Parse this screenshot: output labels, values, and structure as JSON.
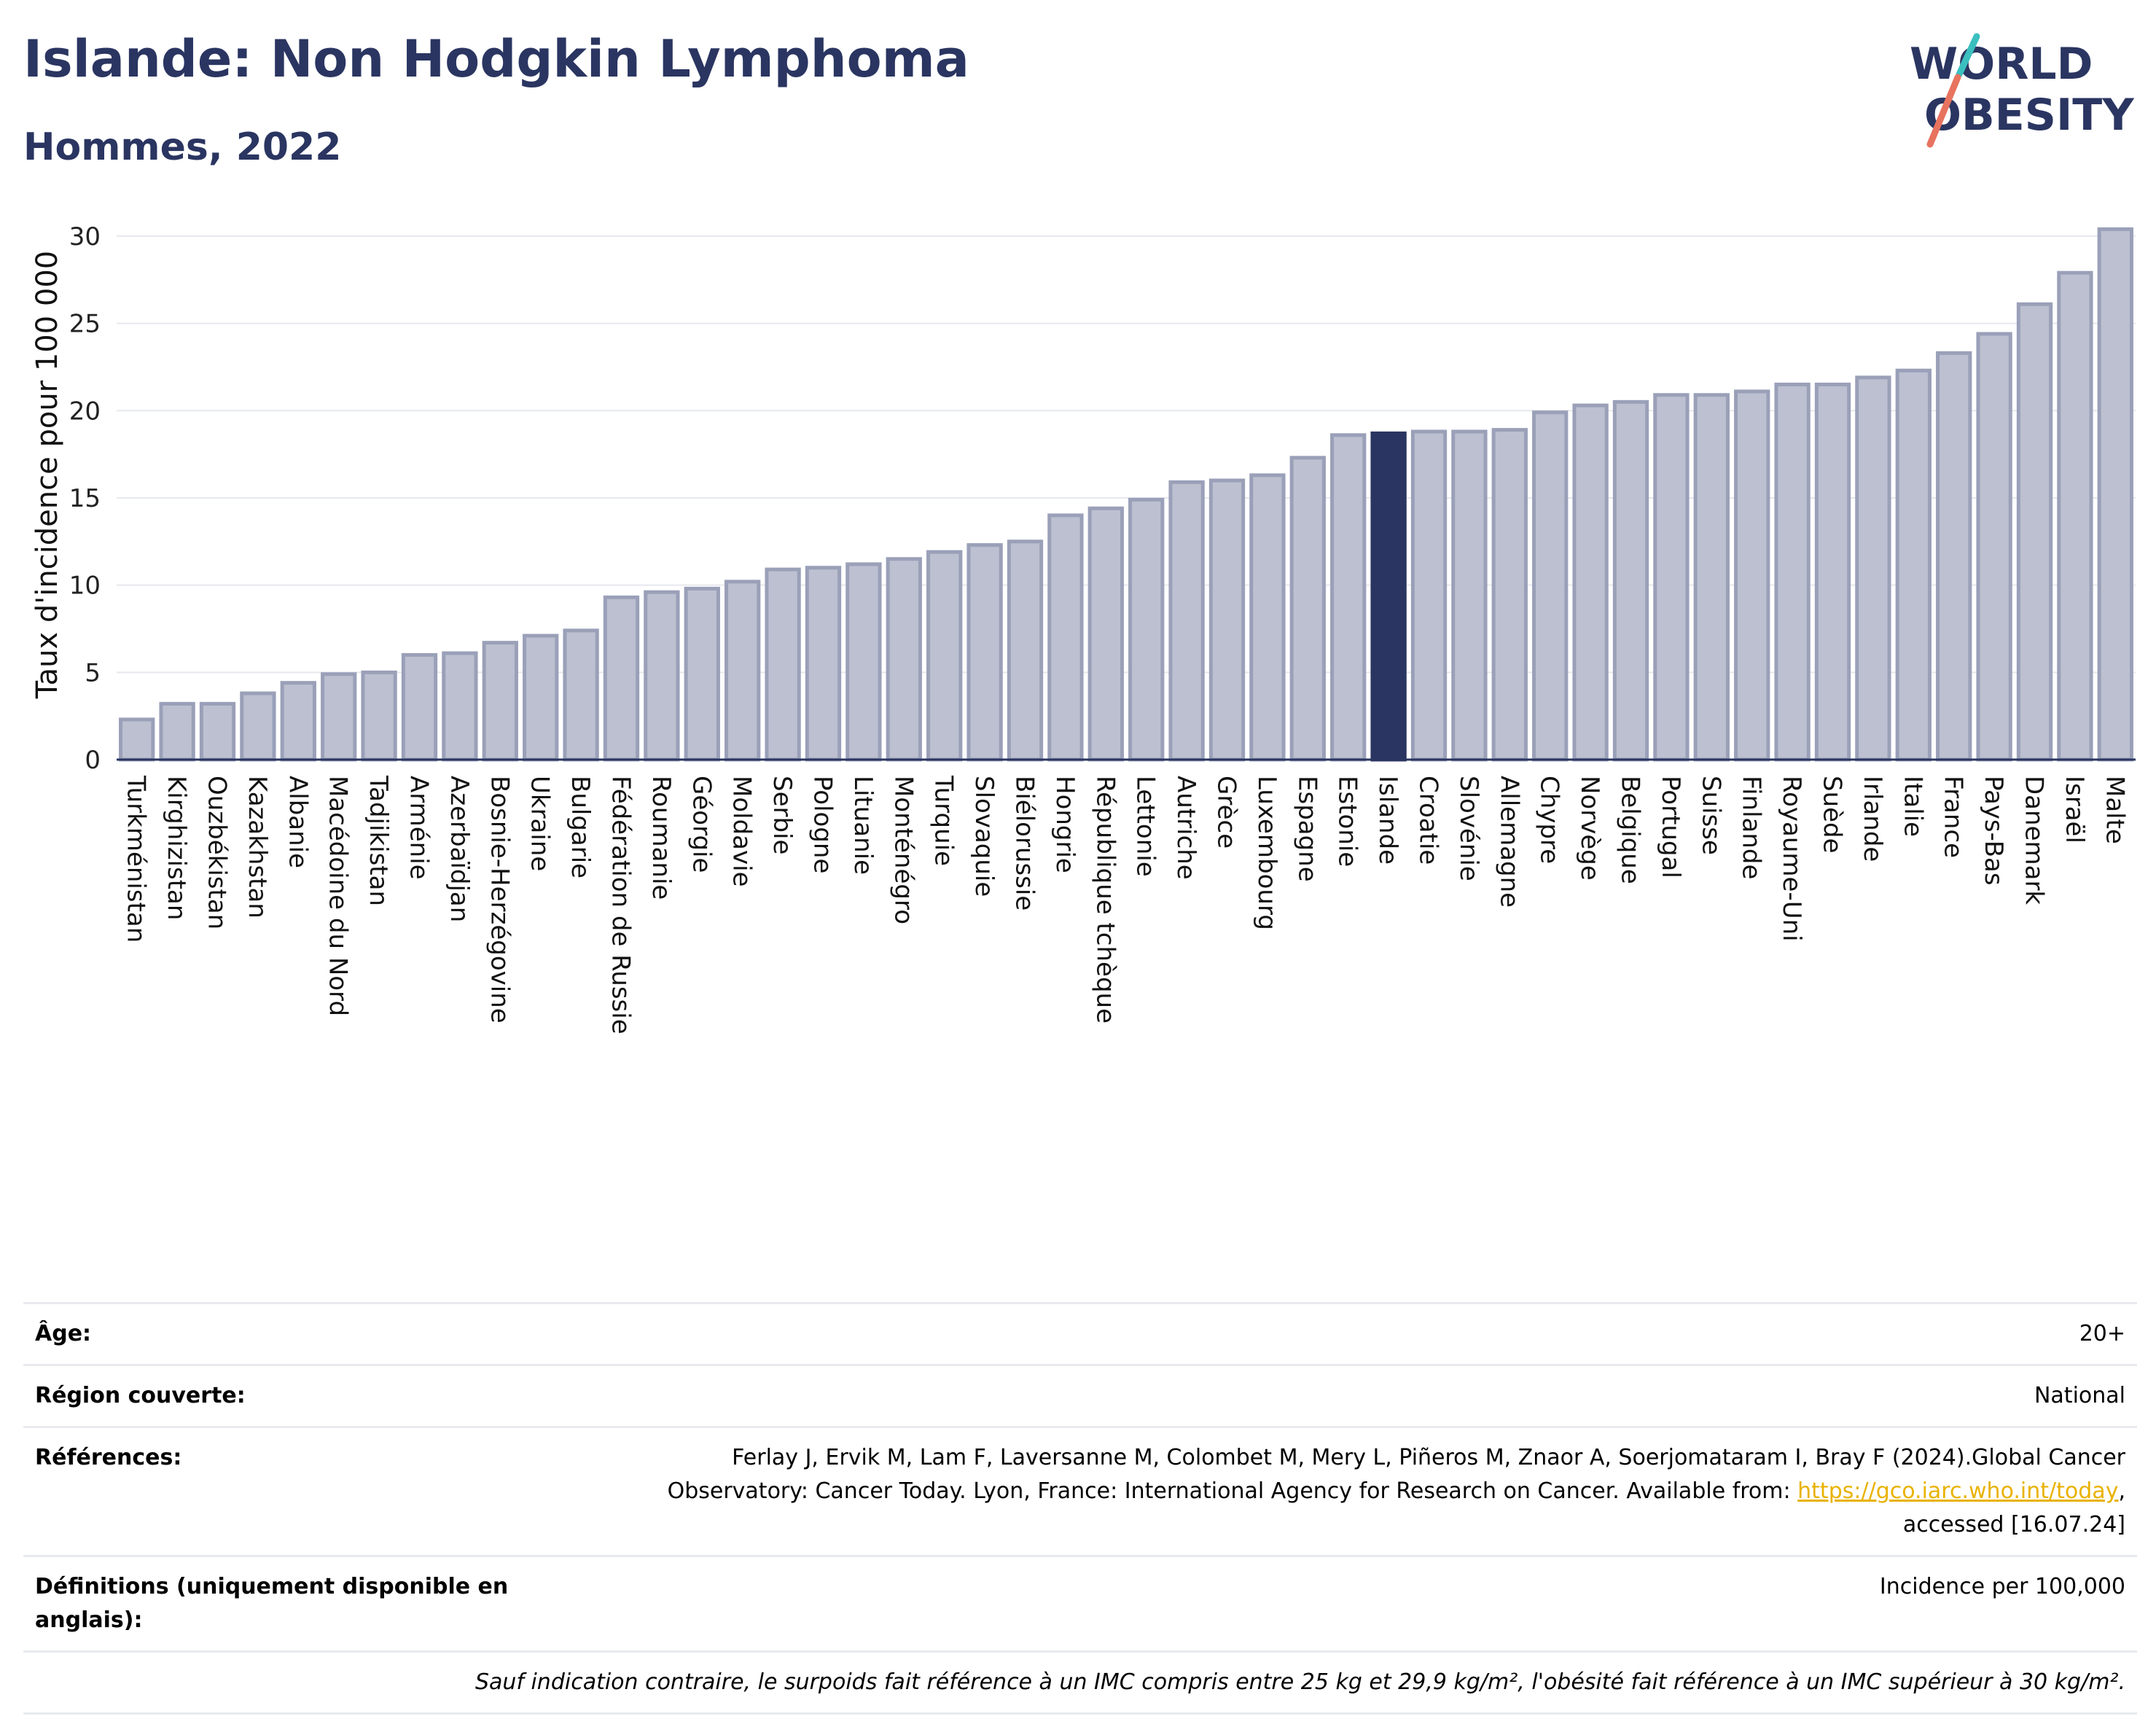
{
  "header": {
    "title": "Islande: Non Hodgkin Lymphoma",
    "subtitle": "Hommes, 2022",
    "logo_line1": "WORLD",
    "logo_line2": "OBESITY"
  },
  "colors": {
    "bar": "#bcc0d0",
    "bar_border": "#9aa0b8",
    "highlight": "#2a3561",
    "title": "#2a3561",
    "grid": "#e6e8ee",
    "link": "#e9b200",
    "logo_slash_top": "#3bbfbf",
    "logo_slash_bottom": "#e8735f"
  },
  "chart_data": {
    "type": "bar",
    "ylabel": "Taux d'incidence pour 100 000",
    "ylim": [
      0,
      31
    ],
    "yticks": [
      0,
      5,
      10,
      15,
      20,
      25,
      30
    ],
    "grid": true,
    "highlight": "Islande",
    "categories": [
      "Turkménistan",
      "Kirghizistan",
      "Ouzbékistan",
      "Kazakhstan",
      "Albanie",
      "Macédoine du Nord",
      "Tadjikistan",
      "Arménie",
      "Azerbaïdjan",
      "Bosnie-Herzégovine",
      "Ukraine",
      "Bulgarie",
      "Fédération de Russie",
      "Roumanie",
      "Géorgie",
      "Moldavie",
      "Serbie",
      "Pologne",
      "Lituanie",
      "Monténégro",
      "Turquie",
      "Slovaquie",
      "Biélorussie",
      "Hongrie",
      "République tchèque",
      "Lettonie",
      "Autriche",
      "Grèce",
      "Luxembourg",
      "Espagne",
      "Estonie",
      "Islande",
      "Croatie",
      "Slovénie",
      "Allemagne",
      "Chypre",
      "Norvège",
      "Belgique",
      "Portugal",
      "Suisse",
      "Finlande",
      "Royaume-Uni",
      "Suède",
      "Irlande",
      "Italie",
      "France",
      "Pays-Bas",
      "Danemark",
      "Israël",
      "Malte"
    ],
    "values": [
      2.3,
      3.2,
      3.2,
      3.8,
      4.4,
      4.9,
      5.0,
      6.0,
      6.1,
      6.7,
      7.1,
      7.4,
      9.3,
      9.6,
      9.8,
      10.2,
      10.9,
      11.0,
      11.2,
      11.5,
      11.9,
      12.3,
      12.5,
      14.0,
      14.4,
      14.9,
      15.9,
      16.0,
      16.3,
      17.3,
      18.6,
      18.7,
      18.8,
      18.8,
      18.9,
      19.9,
      20.3,
      20.5,
      20.9,
      20.9,
      21.1,
      21.5,
      21.5,
      21.9,
      22.3,
      23.3,
      24.4,
      26.1,
      27.9,
      30.4
    ]
  },
  "info": {
    "age_label": "Âge:",
    "age_value": "20+",
    "region_label": "Région couverte:",
    "region_value": "National",
    "ref_label": "Références:",
    "ref_text": "Ferlay J, Ervik M, Lam F, Laversanne M, Colombet M, Mery L, Piñeros M, Znaor A, Soerjomataram I, Bray F (2024).Global Cancer Observatory: Cancer Today. Lyon, France: International Agency for Research on Cancer. Available from: ",
    "ref_link": "https://gco.iarc.who.int/today",
    "ref_suffix": ", accessed [16.07.24]",
    "def_label": "Définitions (uniquement disponible en anglais):",
    "def_value": "Incidence per 100,000",
    "note": "Sauf indication contraire, le surpoids fait référence à un IMC compris entre 25 kg et 29,9 kg/m², l'obésité fait référence à un IMC supérieur à 30 kg/m²."
  }
}
